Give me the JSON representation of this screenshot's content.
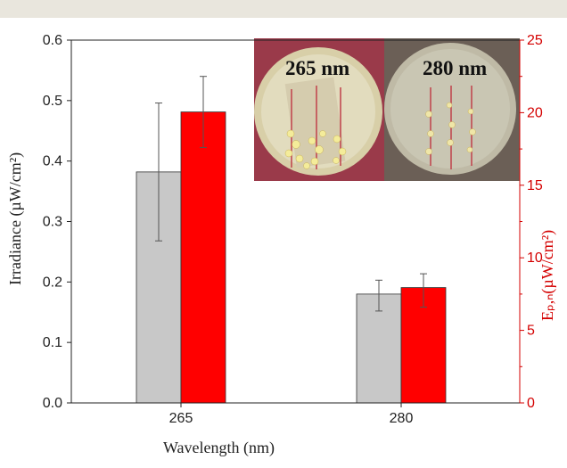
{
  "chart_data": {
    "type": "bar",
    "categories": [
      "265",
      "280"
    ],
    "xlabel": "Wavelength (nm)",
    "ylabel": "Irradiance (µW/cm²)",
    "ylabel_right": "Eₚ,ₙ(µW/cm²)",
    "ylim": [
      0,
      0.6
    ],
    "ylim_right": [
      0,
      25
    ],
    "yticks": [
      "0.0",
      "0.1",
      "0.2",
      "0.3",
      "0.4",
      "0.5",
      "0.6"
    ],
    "yticks_right": [
      "0",
      "5",
      "10",
      "15",
      "20",
      "25"
    ],
    "grid": false,
    "series": [
      {
        "axis": "left",
        "color": "#c8c8c8",
        "values": [
          0.382,
          0.18
        ],
        "err_low": [
          0.268,
          0.152
        ],
        "err_high": [
          0.496,
          0.203
        ]
      },
      {
        "axis": "right",
        "color": "#ff0000",
        "values": [
          20.05,
          7.95
        ],
        "err_low": [
          17.6,
          6.6
        ],
        "err_high": [
          22.5,
          8.9
        ]
      }
    ],
    "annotations": [
      "265 nm",
      "280 nm"
    ]
  }
}
